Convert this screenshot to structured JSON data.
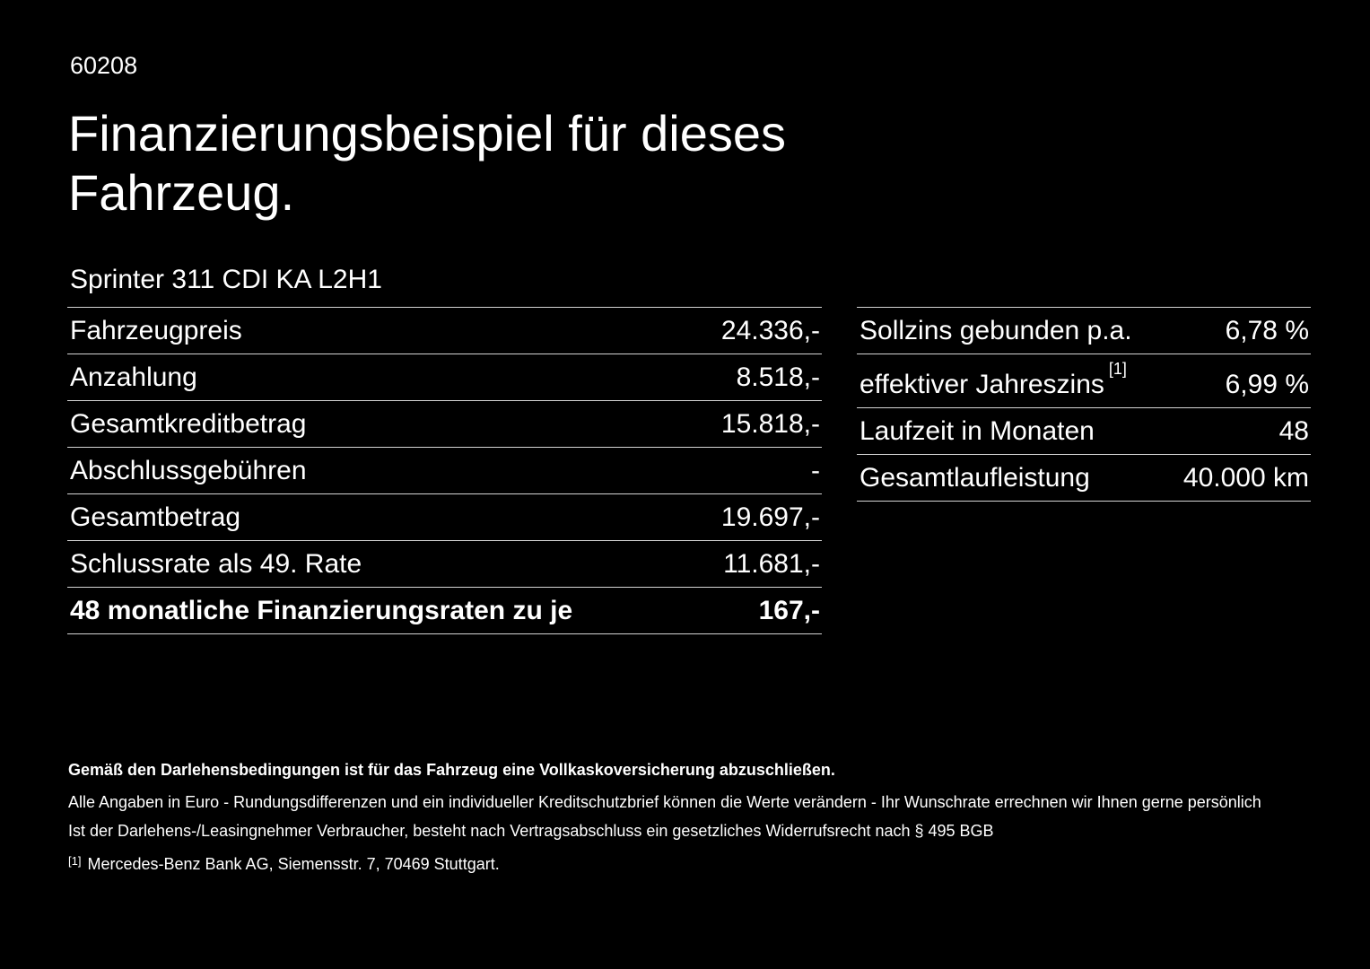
{
  "page": {
    "doc_number": "60208",
    "title": "Finanzierungsbeispiel für dieses Fahrzeug.",
    "subtitle": "Sprinter 311 CDI KA L2H1"
  },
  "left_table": {
    "rows": [
      {
        "label": "Fahrzeugpreis",
        "value": "24.336,-"
      },
      {
        "label": "Anzahlung",
        "value": "8.518,-"
      },
      {
        "label": "Gesamtkreditbetrag",
        "value": "15.818,-"
      },
      {
        "label": "Abschlussgebühren",
        "value": "-"
      },
      {
        "label": "Gesamtbetrag",
        "value": "19.697,-"
      },
      {
        "label": "Schlussrate als 49. Rate",
        "value": "11.681,-"
      },
      {
        "label": "48 monatliche Finanzierungsraten zu je",
        "value": "167,-"
      }
    ]
  },
  "right_table": {
    "rows": [
      {
        "label": "Sollzins gebunden p.a.",
        "value": "6,78 %"
      },
      {
        "label": "effektiver Jahreszins",
        "marker": "[1]",
        "value": "6,99 %"
      },
      {
        "label": "Laufzeit in Monaten",
        "value": "48"
      },
      {
        "label": "Gesamtlaufleistung",
        "value": "40.000 km"
      }
    ]
  },
  "footnotes": {
    "bold_note": "Gemäß den Darlehensbedingungen ist für das Fahrzeug eine Vollkaskoversicherung abzuschließen.",
    "note1": "Alle Angaben in Euro - Rundungsdifferenzen und ein individueller Kreditschutzbrief können die Werte verändern - Ihr Wunschrate errechnen wir Ihnen gerne persönlich",
    "note2": "Ist der Darlehens-/Leasingnehmer Verbraucher, besteht nach Vertragsabschluss ein gesetzliches Widerrufsrecht nach § 495 BGB",
    "ref_marker": "[1]",
    "ref_text": "Mercedes-Benz Bank AG, Siemensstr. 7, 70469 Stuttgart."
  },
  "colors": {
    "background": "#000000",
    "text": "#ffffff",
    "divider": "#d4d4d4"
  }
}
